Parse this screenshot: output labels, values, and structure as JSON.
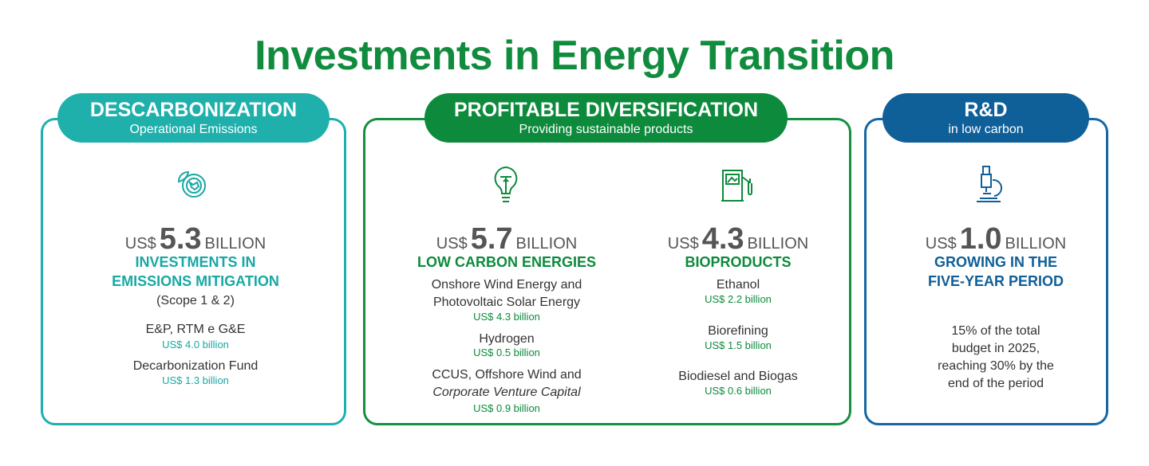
{
  "title": "Investments in Energy Transition",
  "panels": [
    {
      "header": "DESCARBONIZATION",
      "subheader": "Operational Emissions",
      "columns": [
        {
          "prefix": "US$",
          "amount": "5.3",
          "unit": "BILLION",
          "label": [
            "INVESTMENTS IN",
            "EMISSIONS MITIGATION"
          ],
          "note": "(Scope 1 & 2)",
          "items": [
            {
              "name": [
                "E&P, RTM e G&E"
              ],
              "value": "US$ 4.0 billion"
            },
            {
              "name": [
                "Decarbonization Fund"
              ],
              "value": "US$ 1.3 billion"
            }
          ]
        }
      ]
    },
    {
      "header": "PROFITABLE DIVERSIFICATION",
      "subheader": "Providing sustainable products",
      "columns": [
        {
          "prefix": "US$",
          "amount": "5.7",
          "unit": "BILLION",
          "label": [
            "LOW CARBON ENERGIES"
          ],
          "items": [
            {
              "name": [
                "Onshore Wind Energy and",
                "Photovoltaic Solar Energy"
              ],
              "value": "US$ 4.3 billion"
            },
            {
              "name": [
                "Hydrogen"
              ],
              "value": "US$ 0.5 billion"
            },
            {
              "name": [
                "CCUS, Offshore Wind and",
                "Corporate Venture Capital"
              ],
              "value": "US$ 0.9 billion"
            }
          ]
        },
        {
          "prefix": "US$",
          "amount": "4.3",
          "unit": "BILLION",
          "label": [
            "BIOPRODUCTS"
          ],
          "items": [
            {
              "name": [
                "Ethanol"
              ],
              "value": "US$ 2.2 billion"
            },
            {
              "name": [
                "Biorefining"
              ],
              "value": "US$ 1.5 billion"
            },
            {
              "name": [
                "Biodiesel and Biogas"
              ],
              "value": "US$ 0.6 billion"
            }
          ]
        }
      ]
    },
    {
      "header": "R&D",
      "subheader": "in low carbon",
      "columns": [
        {
          "prefix": "US$",
          "amount": "1.0",
          "unit": "BILLION",
          "label": [
            "GROWING IN THE",
            "FIVE-YEAR PERIOD"
          ],
          "description": [
            "15% of the total",
            "budget in 2025,",
            "reaching 30% by the",
            "end of the period"
          ]
        }
      ]
    }
  ]
}
